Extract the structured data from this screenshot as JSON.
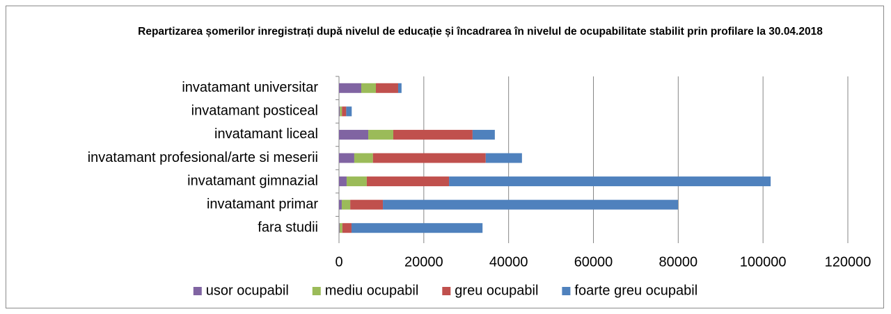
{
  "chart_data": {
    "type": "stacked-bar-horizontal",
    "title": "Repartizarea șomerilor inregistrați după nivelul de educație și încadrarea în nivelul de ocupabilitate stabilit prin profilare la 30.04.2018",
    "categories": [
      "invatamant universitar",
      "invatamant posticeal",
      "invatamant liceal",
      "invatamant profesional/arte si meserii",
      "invatamant gimnazial",
      "invatamant primar",
      "fara studii"
    ],
    "series": [
      {
        "name": "usor ocupabil",
        "color": "#8064a2",
        "values": [
          5250,
          200,
          6900,
          3600,
          1800,
          650,
          150
        ]
      },
      {
        "name": "mediu ocupabil",
        "color": "#9bbb59",
        "values": [
          3450,
          500,
          5900,
          4400,
          4750,
          2000,
          650
        ]
      },
      {
        "name": "greu ocupabil",
        "color": "#c0504d",
        "values": [
          5250,
          1000,
          18700,
          26600,
          19400,
          7700,
          2150
        ]
      },
      {
        "name": "foarte greu ocupabil",
        "color": "#4f81bd",
        "values": [
          800,
          1300,
          5250,
          8550,
          75850,
          69600,
          30900
        ]
      }
    ],
    "xlim": [
      0,
      120000
    ],
    "xticks": [
      0,
      20000,
      40000,
      60000,
      80000,
      100000,
      120000
    ],
    "grid": true,
    "legend": "bottom"
  }
}
